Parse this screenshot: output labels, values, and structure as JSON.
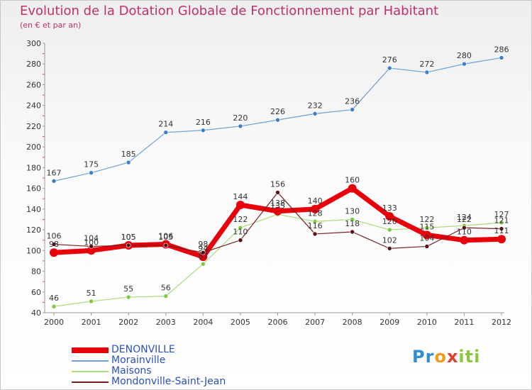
{
  "chart_data": {
    "type": "line",
    "title": "Evolution de la Dotation Globale de Fonctionnement par Habitant",
    "subtitle": "(en € et par an)",
    "xlabel": "",
    "ylabel": "",
    "categories": [
      "2000",
      "2001",
      "2002",
      "2003",
      "2004",
      "2005",
      "2006",
      "2007",
      "2008",
      "2009",
      "2010",
      "2011",
      "2012"
    ],
    "ylim": [
      40,
      300
    ],
    "yticks": [
      40,
      60,
      80,
      100,
      120,
      140,
      160,
      180,
      200,
      220,
      240,
      260,
      280,
      300
    ],
    "grid": false,
    "legend_position": "bottom-left",
    "series": [
      {
        "name": "DENONVILLE",
        "color": "#e8000b",
        "values": [
          98,
          100,
          105,
          106,
          94,
          144,
          138,
          140,
          160,
          133,
          115,
          110,
          111
        ],
        "labels": [
          "98",
          "100",
          "105",
          "106",
          "94",
          "144",
          "138",
          "140",
          "160",
          "133",
          "115",
          "110",
          "111"
        ]
      },
      {
        "name": "Morainville",
        "color": "#6aa0d6",
        "point_color": "#3a7fc8",
        "values": [
          167,
          175,
          185,
          214,
          216,
          220,
          226,
          232,
          236,
          276,
          272,
          280,
          286
        ],
        "labels": [
          "167",
          "175",
          "185",
          "214",
          "216",
          "220",
          "226",
          "232",
          "236",
          "276",
          "272",
          "280",
          "286"
        ]
      },
      {
        "name": "Maisons",
        "color": "#a6dc7a",
        "point_color": "#7ccb3a",
        "values": [
          46,
          51,
          55,
          56,
          87,
          122,
          135,
          128,
          130,
          120,
          122,
          124,
          127
        ],
        "labels": [
          "46",
          "51",
          "55",
          "56",
          "87",
          "122",
          "135",
          "128",
          "130",
          "120",
          "122",
          "124",
          "127"
        ]
      },
      {
        "name": "Mondonville-Saint-Jean",
        "color": "#7a2020",
        "point_color": "#5a1010",
        "values": [
          106,
          104,
          105,
          105,
          98,
          110,
          156,
          116,
          118,
          102,
          104,
          122,
          121
        ],
        "labels": [
          "106",
          "104",
          "105",
          "105",
          "98",
          "110",
          "156",
          "116",
          "118",
          "102",
          "104",
          "122",
          "121"
        ]
      }
    ]
  },
  "branding": {
    "logo_parts": [
      "Pr",
      "o",
      "x",
      "iti"
    ],
    "logo_colors": [
      "#2f8fd0",
      "#f29a1f",
      "#e63b2e",
      "#8dc63f"
    ]
  }
}
